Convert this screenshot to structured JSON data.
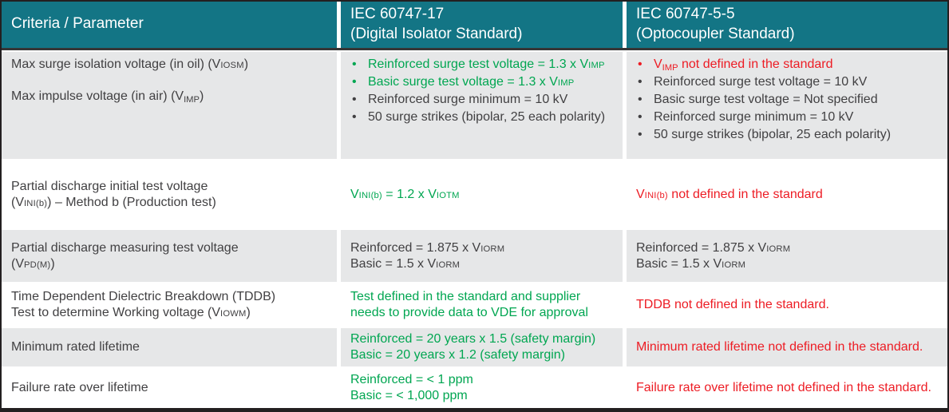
{
  "palette": {
    "teal_header_bg": "#137585",
    "header_text": "#ffffff",
    "green": "#00a651",
    "red": "#ed1c24",
    "dark": "#414042",
    "row_alt_gray": "#e6e7e8",
    "outer_border": "#231f20"
  },
  "header": {
    "criteria": "Criteria / Parameter",
    "col2_line1": "IEC 60747-17",
    "col2_line2": "(Digital Isolator Standard)",
    "col3_line1": "IEC 60747-5-5",
    "col3_line2": "(Optocoupler Standard)"
  },
  "rows": [
    {
      "param": [
        "Max surge isolation voltage (in oil) (V{sc:IOSM})",
        "",
        "Max impulse voltage (in air) (V{sub:IMP})"
      ],
      "iec60747_17": {
        "bulleted": true,
        "items": [
          {
            "color": "green",
            "text": "Reinforced surge test voltage = 1.3 x V{sc:IMP}"
          },
          {
            "color": "green",
            "text": "Basic surge test voltage = 1.3 x V{sc:IMP}"
          },
          {
            "color": "dark",
            "text": "Reinforced surge minimum = 10 kV"
          },
          {
            "color": "dark",
            "text": "50 surge strikes (bipolar, 25 each polarity)"
          }
        ]
      },
      "iec60747_5_5": {
        "bulleted": true,
        "items": [
          {
            "color": "red",
            "text": "V{sub:IMP} not defined in the standard"
          },
          {
            "color": "dark",
            "text": "Reinforced surge test voltage = 10 kV"
          },
          {
            "color": "dark",
            "text": "Basic surge test voltage = Not specified"
          },
          {
            "color": "dark",
            "text": "Reinforced surge minimum = 10 kV"
          },
          {
            "color": "dark",
            "text": "50 surge strikes (bipolar, 25 each polarity)"
          }
        ]
      }
    },
    {
      "param": [
        "Partial discharge initial test voltage",
        "(V{sc:INI(b)}) – Method b (Production test)"
      ],
      "iec60747_17": {
        "bulleted": false,
        "items": [
          {
            "color": "green",
            "text": "V{sc:INI(b)} = 1.2 x V{sc:IOTM}"
          }
        ]
      },
      "iec60747_5_5": {
        "bulleted": false,
        "items": [
          {
            "color": "red",
            "text": "V{sc:INI(b)} not defined in the standard"
          }
        ]
      }
    },
    {
      "param": [
        "Partial discharge measuring test voltage",
        "(V{sc:PD(M)})"
      ],
      "iec60747_17": {
        "bulleted": false,
        "items": [
          {
            "color": "dark",
            "text": "Reinforced = 1.875 x V{sc:IORM}"
          },
          {
            "color": "dark",
            "text": "Basic = 1.5 x V{sc:IORM}"
          }
        ]
      },
      "iec60747_5_5": {
        "bulleted": false,
        "items": [
          {
            "color": "dark",
            "text": "Reinforced = 1.875 x V{sc:IORM}"
          },
          {
            "color": "dark",
            "text": "Basic = 1.5 x V{sc:IORM}"
          }
        ]
      }
    },
    {
      "param": [
        "Time Dependent Dielectric Breakdown (TDDB)",
        "Test to determine Working voltage (V{sc:IOWM})"
      ],
      "iec60747_17": {
        "bulleted": false,
        "items": [
          {
            "color": "green",
            "text": "Test defined in the standard and supplier needs to provide data to VDE for approval"
          }
        ]
      },
      "iec60747_5_5": {
        "bulleted": false,
        "items": [
          {
            "color": "red",
            "text": "TDDB not defined in the standard."
          }
        ]
      }
    },
    {
      "param": [
        "Minimum rated lifetime"
      ],
      "iec60747_17": {
        "bulleted": false,
        "items": [
          {
            "color": "green",
            "text": "Reinforced = 20 years x 1.5 (safety margin)"
          },
          {
            "color": "green",
            "text": "Basic = 20 years x 1.2 (safety margin)"
          }
        ]
      },
      "iec60747_5_5": {
        "bulleted": false,
        "items": [
          {
            "color": "red",
            "text": "Minimum rated lifetime not defined in the standard."
          }
        ]
      }
    },
    {
      "param": [
        "Failure rate over lifetime"
      ],
      "iec60747_17": {
        "bulleted": false,
        "items": [
          {
            "color": "green",
            "text": "Reinforced = < 1 ppm"
          },
          {
            "color": "green",
            "text": "Basic = < 1,000 ppm"
          }
        ]
      },
      "iec60747_5_5": {
        "bulleted": false,
        "items": [
          {
            "color": "red",
            "text": "Failure rate over lifetime not defined in the standard."
          }
        ]
      }
    }
  ]
}
